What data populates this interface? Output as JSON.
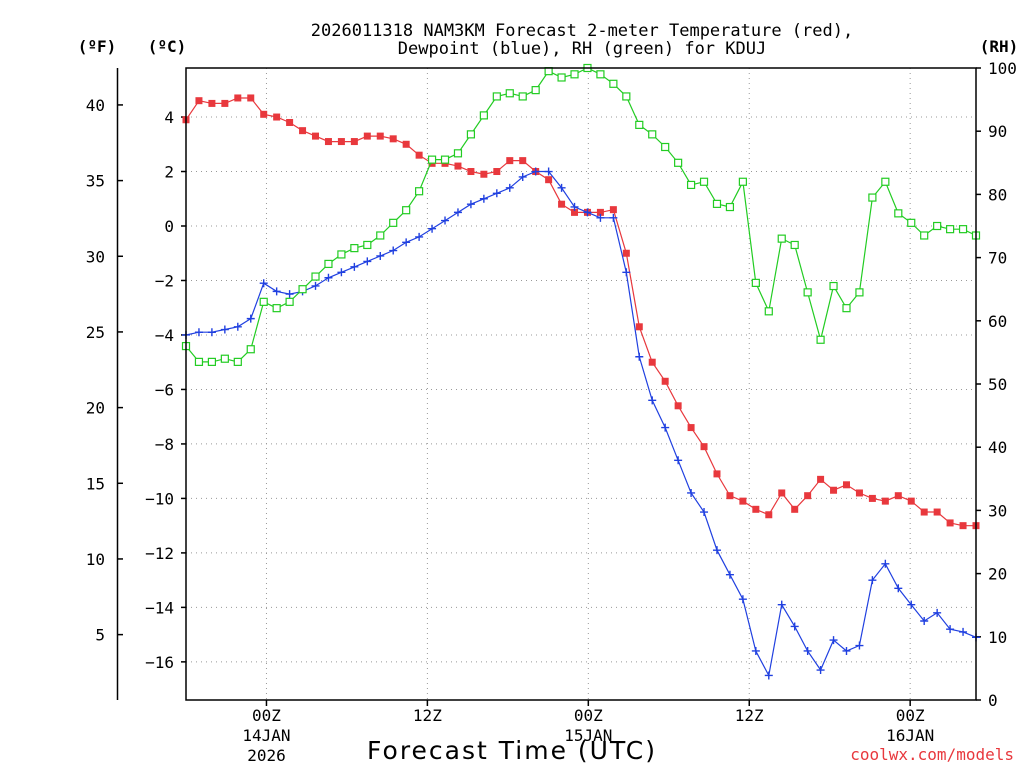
{
  "chart_data": {
    "type": "line",
    "title_line1": "2026011318 NAM3KM Forecast 2-meter Temperature (red),",
    "title_line2": "Dewpoint (blue), RH (green) for KDUJ",
    "xlabel": "Forecast Time (UTC)",
    "watermark": "coolwx.com/models",
    "axis_units": {
      "fahrenheit": "(ºF)",
      "celsius": "(ºC)",
      "rh": "(RH)"
    },
    "x_range_hours": [
      0,
      54
    ],
    "celsius_range": [
      -17.4,
      5.8
    ],
    "rh_range": [
      0,
      100
    ],
    "x_ticks": [
      {
        "hour": 5.5,
        "line1": "00Z",
        "line2": "14JAN",
        "line3": "2026"
      },
      {
        "hour": 16.5,
        "line1": "12Z",
        "line2": "",
        "line3": ""
      },
      {
        "hour": 27.5,
        "line1": "00Z",
        "line2": "15JAN",
        "line3": ""
      },
      {
        "hour": 38.5,
        "line1": "12Z",
        "line2": "",
        "line3": ""
      },
      {
        "hour": 49.5,
        "line1": "00Z",
        "line2": "16JAN",
        "line3": ""
      }
    ],
    "fahrenheit_ticks": [
      5,
      10,
      15,
      20,
      25,
      30,
      35,
      40
    ],
    "celsius_ticks": [
      -16,
      -14,
      -12,
      -10,
      -8,
      -6,
      -4,
      -2,
      0,
      2,
      4
    ],
    "rh_ticks": [
      0,
      10,
      20,
      30,
      40,
      50,
      60,
      70,
      80,
      90,
      100
    ],
    "series": [
      {
        "name": "Temperature",
        "unit": "C",
        "color": "#e8383d",
        "marker": "filled-square",
        "values": [
          3.9,
          4.6,
          4.5,
          4.5,
          4.7,
          4.7,
          4.1,
          4.0,
          3.8,
          3.5,
          3.3,
          3.1,
          3.1,
          3.1,
          3.3,
          3.3,
          3.2,
          3.0,
          2.6,
          2.3,
          2.3,
          2.2,
          2.0,
          1.9,
          2.0,
          2.4,
          2.4,
          2.0,
          1.7,
          0.8,
          0.5,
          0.5,
          0.5,
          0.6,
          -1.0,
          -3.7,
          -5.0,
          -5.7,
          -6.6,
          -7.4,
          -8.1,
          -9.1,
          -9.9,
          -10.1,
          -10.4,
          -10.6,
          -9.8,
          -10.4,
          -9.9,
          -9.3,
          -9.7,
          -9.5,
          -9.8,
          -10.0,
          -10.1,
          -9.9,
          -10.1,
          -10.5,
          -10.5,
          -10.9,
          -11.0,
          -11.0
        ]
      },
      {
        "name": "Dewpoint",
        "unit": "C",
        "color": "#2040e0",
        "marker": "plus",
        "values": [
          -4.0,
          -3.9,
          -3.9,
          -3.8,
          -3.7,
          -3.4,
          -2.1,
          -2.4,
          -2.5,
          -2.4,
          -2.2,
          -1.9,
          -1.7,
          -1.5,
          -1.3,
          -1.1,
          -0.9,
          -0.6,
          -0.4,
          -0.1,
          0.2,
          0.5,
          0.8,
          1.0,
          1.2,
          1.4,
          1.8,
          2.0,
          2.0,
          1.4,
          0.7,
          0.5,
          0.3,
          0.3,
          -1.7,
          -4.8,
          -6.4,
          -7.4,
          -8.6,
          -9.8,
          -10.5,
          -11.9,
          -12.8,
          -13.7,
          -15.6,
          -16.5,
          -13.9,
          -14.7,
          -15.6,
          -16.3,
          -15.2,
          -15.6,
          -15.4,
          -13.0,
          -12.4,
          -13.3,
          -13.9,
          -14.5,
          -14.2,
          -14.8,
          -14.9,
          -15.1
        ]
      },
      {
        "name": "Relative Humidity",
        "unit": "%",
        "color": "#22cc22",
        "marker": "open-square",
        "values": [
          56,
          53.5,
          53.5,
          54,
          53.5,
          55.5,
          63,
          62,
          63,
          65,
          67,
          69,
          70.5,
          71.5,
          72,
          73.5,
          75.5,
          77.5,
          80.5,
          85.5,
          85.5,
          86.5,
          89.5,
          92.5,
          95.5,
          96,
          95.5,
          96.5,
          99.5,
          98.5,
          99,
          100,
          99,
          97.5,
          95.5,
          91,
          89.5,
          87.5,
          85,
          81.5,
          82,
          78.5,
          78,
          82,
          66,
          61.5,
          73,
          72,
          64.5,
          57,
          65.5,
          62,
          64.5,
          79.5,
          82,
          77,
          75.5,
          73.5,
          75,
          74.5,
          74.5,
          73.5
        ]
      }
    ]
  }
}
